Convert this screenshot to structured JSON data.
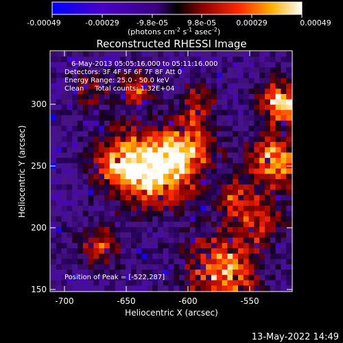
{
  "colorbar": {
    "ticks": [
      "-0.00049",
      "-0.00029",
      "-9.8e-05",
      "9.8e-05",
      "0.00029",
      "0.00049"
    ],
    "unit_prefix": "(photons cm",
    "unit_exp1": "-2",
    "unit_s": " s",
    "unit_exp2": "-1",
    "unit_asec": " asec",
    "unit_exp3": "-2",
    "unit_close": ")",
    "colors": [
      "#0000ff",
      "#4a00c8",
      "#3a007f",
      "#000000",
      "#8a0000",
      "#ff2a00",
      "#ffb000",
      "#ffffff"
    ]
  },
  "title": "Reconstructed RHESSI Image",
  "annotations": {
    "time_range": "6-May-2013 05:05:16.000 to 05:11:16.000",
    "detectors": "Detectors: 3F 4F 5F 6F 7F 8F Att 0",
    "energy": "Energy Range: 25.0 - 50.0 keV",
    "method": "Clean     Total counts: 1.32E+04",
    "peak": "Position of Peak = [-522,287]"
  },
  "x_axis": {
    "label": "Heliocentric X (arcsec)",
    "ticks": [
      "-700",
      "-650",
      "-600",
      "-550"
    ]
  },
  "y_axis": {
    "label": "Heliocentric Y (arcsec)",
    "ticks": [
      "300",
      "250",
      "200",
      "150"
    ]
  },
  "timestamp": "13-May-2022 14:49"
}
